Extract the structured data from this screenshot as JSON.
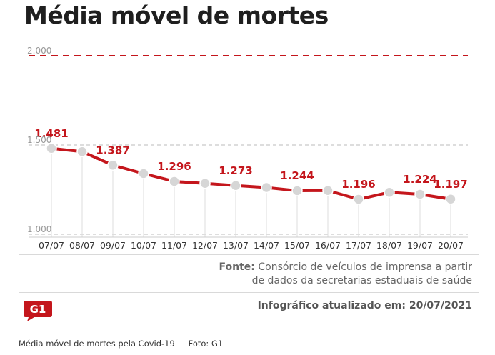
{
  "title": "Média móvel de mortes",
  "colors": {
    "line": "#c4161c",
    "point": "#d6d6d6",
    "reference": "#c4161c",
    "logo": "#c4161c"
  },
  "source": {
    "label": "Fonte:",
    "line1": "Consórcio de veículos de imprensa a partir",
    "line2": "de dados da secretarias estaduais de saúde"
  },
  "updated": "Infográfico atualizado em: 20/07/2021",
  "logo_text": "G1",
  "caption": "Média móvel de mortes pela Covid-19 — Foto: G1",
  "chart_data": {
    "type": "line",
    "categories": [
      "07/07",
      "08/07",
      "09/07",
      "10/07",
      "11/07",
      "12/07",
      "13/07",
      "14/07",
      "15/07",
      "16/07",
      "17/07",
      "18/07",
      "19/07",
      "20/07"
    ],
    "values": [
      1481,
      1463,
      1387,
      1340,
      1296,
      1285,
      1273,
      1262,
      1244,
      1245,
      1196,
      1235,
      1224,
      1197
    ],
    "data_labels": [
      {
        "index": 0,
        "text": "1.481"
      },
      {
        "index": 2,
        "text": "1.387"
      },
      {
        "index": 4,
        "text": "1.296"
      },
      {
        "index": 6,
        "text": "1.273"
      },
      {
        "index": 8,
        "text": "1.244"
      },
      {
        "index": 10,
        "text": "1.196"
      },
      {
        "index": 12,
        "text": "1.224"
      },
      {
        "index": 13,
        "text": "1.197"
      }
    ],
    "yticks": [
      {
        "value": 1000,
        "label": "1.000"
      },
      {
        "value": 1500,
        "label": "1.500"
      },
      {
        "value": 2000,
        "label": "2.000"
      }
    ],
    "ylim": [
      1000,
      2000
    ],
    "reference_line": 2000,
    "grid": true
  }
}
